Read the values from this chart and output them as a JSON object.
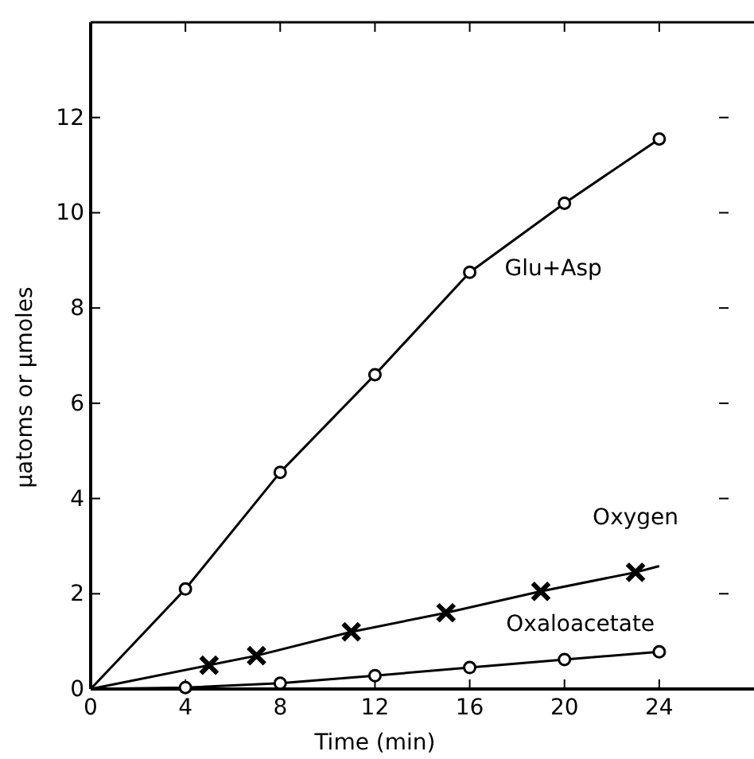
{
  "chart_data": {
    "type": "line",
    "xlabel": "Time (min)",
    "ylabel": "μatoms or μmoles",
    "xlim": [
      0,
      28
    ],
    "ylim": [
      0,
      14
    ],
    "xticks": [
      0,
      4,
      8,
      12,
      16,
      20,
      24
    ],
    "yticks": [
      0,
      2,
      4,
      6,
      8,
      10,
      12
    ],
    "grid": false,
    "legend": false,
    "series": [
      {
        "name": "Glu+Asp",
        "color": "#000000",
        "marker": "circle",
        "x": [
          0,
          4,
          8,
          12,
          16,
          20,
          24
        ],
        "values": [
          0,
          2.1,
          4.55,
          6.6,
          8.75,
          10.2,
          11.55
        ]
      },
      {
        "name": "Oxygen",
        "color": "#000000",
        "marker": "cross",
        "x": [
          0,
          5,
          7,
          11,
          15,
          19,
          23,
          24
        ],
        "values": [
          0,
          0.5,
          0.7,
          1.2,
          1.6,
          2.05,
          2.45,
          2.58
        ]
      },
      {
        "name": "Oxaloacetate",
        "color": "#000000",
        "marker": "circle",
        "x": [
          0,
          4,
          8,
          12,
          16,
          20,
          24
        ],
        "values": [
          0,
          0.03,
          0.12,
          0.28,
          0.45,
          0.62,
          0.78
        ]
      }
    ]
  }
}
